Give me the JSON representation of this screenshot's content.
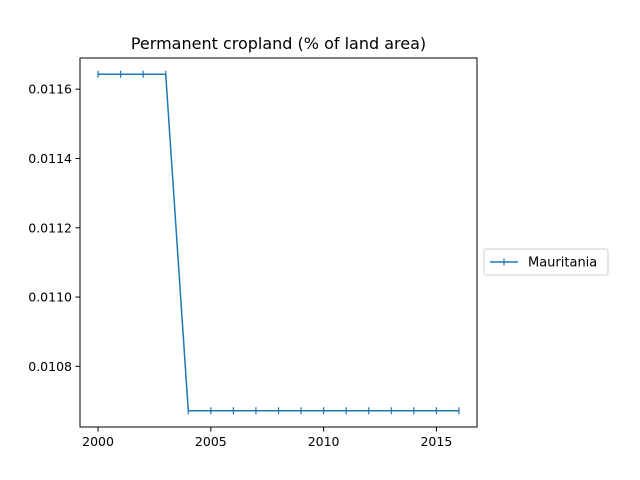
{
  "chart_data": {
    "type": "line",
    "title": "Permanent cropland (% of land area)",
    "xlabel": "",
    "ylabel": "",
    "x": [
      2000,
      2001,
      2002,
      2003,
      2004,
      2005,
      2006,
      2007,
      2008,
      2009,
      2010,
      2011,
      2012,
      2013,
      2014,
      2015,
      2016
    ],
    "series": [
      {
        "name": "Mauritania",
        "color": "#1f77b4",
        "marker": "vertical-tick",
        "values": [
          0.011643,
          0.011643,
          0.011643,
          0.011643,
          0.010672,
          0.010672,
          0.010672,
          0.010672,
          0.010672,
          0.010672,
          0.010672,
          0.010672,
          0.010672,
          0.010672,
          0.010672,
          0.010672,
          0.010672
        ]
      }
    ],
    "xlim": [
      1999.2,
      2016.8
    ],
    "ylim": [
      0.010625,
      0.01169
    ],
    "xticks": [
      2000,
      2005,
      2010,
      2015
    ],
    "xtick_labels": [
      "2000",
      "2005",
      "2010",
      "2015"
    ],
    "yticks": [
      0.0108,
      0.011,
      0.0112,
      0.0114,
      0.0116
    ],
    "ytick_labels": [
      "0.0108",
      "0.0110",
      "0.0112",
      "0.0114",
      "0.0116"
    ],
    "grid": false,
    "legend_position": "right-outside"
  }
}
